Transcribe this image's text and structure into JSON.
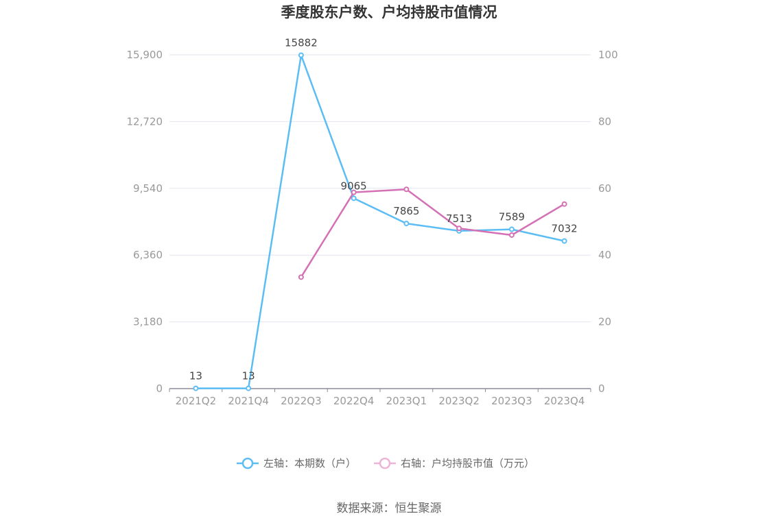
{
  "chart_data": {
    "type": "line",
    "title": "季度股东户数、户均持股市值情况",
    "categories": [
      "2021Q2",
      "2021Q4",
      "2022Q3",
      "2022Q4",
      "2023Q1",
      "2023Q2",
      "2023Q3",
      "2023Q4"
    ],
    "y_left": {
      "ticks": [
        "0",
        "3,180",
        "6,360",
        "9,540",
        "12,720",
        "15,900"
      ],
      "ylim": [
        0,
        15900
      ]
    },
    "y_right": {
      "ticks": [
        "0",
        "20",
        "40",
        "60",
        "80",
        "100"
      ],
      "ylim": [
        0,
        100
      ]
    },
    "grid": true,
    "legend_position": "bottom",
    "series": [
      {
        "name": "左轴：本期数（户）",
        "axis": "left",
        "color": "#5bbdf4",
        "values": [
          13,
          13,
          15882,
          9065,
          7865,
          7513,
          7589,
          7032
        ],
        "labels": [
          "13",
          "13",
          "15882",
          "9065",
          "7865",
          "7513",
          "7589",
          "7032"
        ]
      },
      {
        "name": "右轴：户均持股市值（万元）",
        "axis": "right",
        "color": "#d470b4",
        "values": [
          null,
          null,
          33.4,
          58.8,
          59.7,
          48.0,
          46.0,
          55.3
        ]
      }
    ]
  },
  "source": "数据来源：恒生聚源"
}
